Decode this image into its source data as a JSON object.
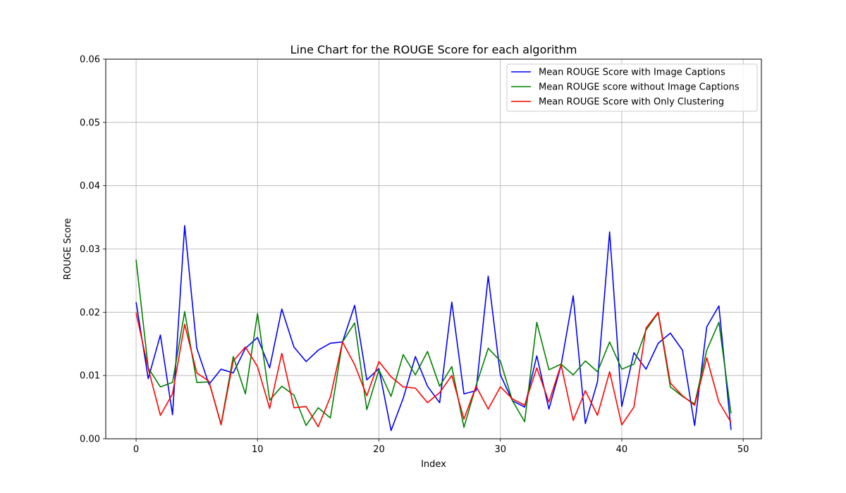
{
  "chart_data": {
    "type": "line",
    "title": "Line Chart for the ROUGE Score for each algorithm",
    "xlabel": "Index",
    "ylabel": "ROUGE Score",
    "xlim": [
      -2.5,
      51.5
    ],
    "ylim": [
      0,
      0.06
    ],
    "xticks": [
      0,
      10,
      20,
      30,
      40,
      50
    ],
    "yticks": [
      0.0,
      0.01,
      0.02,
      0.03,
      0.04,
      0.05,
      0.06
    ],
    "ytick_labels": [
      "0.00",
      "0.01",
      "0.02",
      "0.03",
      "0.04",
      "0.05",
      "0.06"
    ],
    "grid": true,
    "legend_position": "top-right",
    "x": [
      0,
      1,
      2,
      3,
      4,
      5,
      6,
      7,
      8,
      9,
      10,
      11,
      12,
      13,
      14,
      15,
      16,
      17,
      18,
      19,
      20,
      21,
      22,
      23,
      24,
      25,
      26,
      27,
      28,
      29,
      30,
      31,
      32,
      33,
      34,
      35,
      36,
      37,
      38,
      39,
      40,
      41,
      42,
      43,
      44,
      45,
      46,
      47,
      48,
      49
    ],
    "series": [
      {
        "name": "Mean ROUGE Score with Image Captions",
        "color": "#0000ff",
        "values": [
          0.0216,
          0.0095,
          0.0164,
          0.0038,
          0.0337,
          0.0143,
          0.0086,
          0.011,
          0.0104,
          0.0143,
          0.016,
          0.0112,
          0.0205,
          0.0145,
          0.0122,
          0.014,
          0.0151,
          0.0153,
          0.0211,
          0.0093,
          0.0111,
          0.0013,
          0.0064,
          0.013,
          0.0083,
          0.0057,
          0.0216,
          0.0071,
          0.0076,
          0.0257,
          0.0101,
          0.006,
          0.005,
          0.0131,
          0.0047,
          0.0116,
          0.0226,
          0.0024,
          0.009,
          0.0327,
          0.0051,
          0.0136,
          0.011,
          0.0151,
          0.0167,
          0.014,
          0.0021,
          0.0177,
          0.021,
          0.0014
        ]
      },
      {
        "name": "Mean ROUGE score without Image Captions",
        "color": "#008000",
        "values": [
          0.0283,
          0.0112,
          0.0082,
          0.0089,
          0.0201,
          0.0089,
          0.009,
          0.0023,
          0.013,
          0.0071,
          0.0198,
          0.0061,
          0.0083,
          0.0069,
          0.0021,
          0.0049,
          0.0033,
          0.0153,
          0.0183,
          0.0046,
          0.0109,
          0.0067,
          0.0133,
          0.0101,
          0.0138,
          0.0083,
          0.0114,
          0.0018,
          0.0084,
          0.0143,
          0.0123,
          0.006,
          0.0027,
          0.0184,
          0.0109,
          0.0118,
          0.0101,
          0.0123,
          0.0106,
          0.0153,
          0.011,
          0.0118,
          0.0172,
          0.0199,
          0.0082,
          0.0067,
          0.0055,
          0.014,
          0.0184,
          0.004
        ]
      },
      {
        "name": "Mean ROUGE Score with Only Clustering",
        "color": "#ff0000",
        "values": [
          0.0199,
          0.0111,
          0.0037,
          0.0071,
          0.0181,
          0.0104,
          0.0091,
          0.0022,
          0.0123,
          0.0145,
          0.0114,
          0.0048,
          0.0135,
          0.0049,
          0.0051,
          0.0019,
          0.0066,
          0.0153,
          0.0117,
          0.0068,
          0.0122,
          0.0098,
          0.0082,
          0.008,
          0.0057,
          0.0073,
          0.01,
          0.0031,
          0.0083,
          0.0047,
          0.0082,
          0.0063,
          0.0053,
          0.0112,
          0.0058,
          0.0117,
          0.0029,
          0.0076,
          0.0037,
          0.0106,
          0.0022,
          0.005,
          0.0175,
          0.02,
          0.0088,
          0.0068,
          0.0053,
          0.0128,
          0.0058,
          0.0026
        ]
      }
    ]
  }
}
